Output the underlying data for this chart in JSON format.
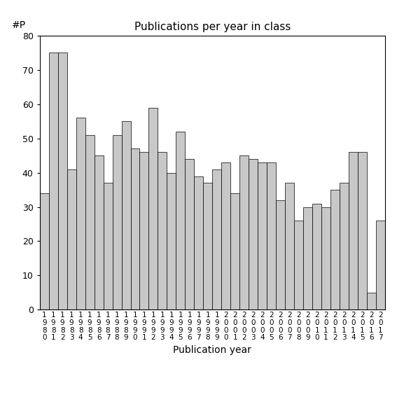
{
  "title": "Publications per year in class",
  "xlabel": "Publication year",
  "ylabel_annotation": "#P",
  "ylim": [
    0,
    80
  ],
  "yticks": [
    0,
    10,
    20,
    30,
    40,
    50,
    60,
    70,
    80
  ],
  "bar_color": "#c8c8c8",
  "bar_edgecolor": "#000000",
  "years": [
    1980,
    1981,
    1982,
    1983,
    1984,
    1985,
    1986,
    1987,
    1988,
    1989,
    1990,
    1991,
    1992,
    1993,
    1994,
    1995,
    1996,
    1997,
    1998,
    1999,
    2000,
    2001,
    2002,
    2003,
    2004,
    2005,
    2006,
    2007,
    2008,
    2009,
    2010,
    2011,
    2012,
    2013,
    2014,
    2015,
    2016,
    2017
  ],
  "values": [
    34,
    75,
    75,
    41,
    56,
    51,
    45,
    37,
    51,
    55,
    47,
    46,
    59,
    46,
    40,
    52,
    44,
    39,
    37,
    41,
    43,
    34,
    45,
    44,
    43,
    43,
    32,
    37,
    26,
    30,
    31,
    30,
    35,
    37,
    46,
    46,
    5,
    26
  ]
}
